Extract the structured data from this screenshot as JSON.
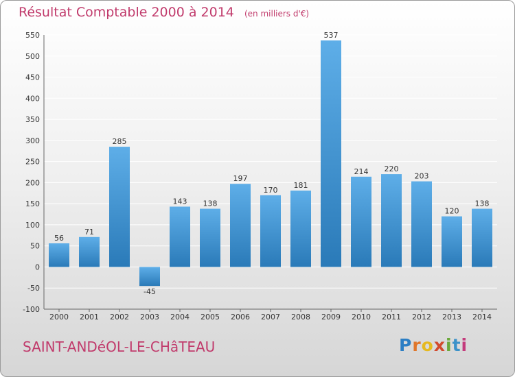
{
  "header": {
    "title": "Résultat Comptable 2000 à 2014",
    "unit": "(en milliers d'€)"
  },
  "footer": {
    "commune": "SAINT-ANDéOL-LE-CHâTEAU",
    "logo_letters": [
      "P",
      "r",
      "o",
      "x",
      "i",
      "t",
      "i"
    ]
  },
  "colors": {
    "title": "#c13b6c",
    "bar_light": "#5eaee8",
    "bar_dark": "#2a7ab8",
    "grid": "#ffffff"
  },
  "chart_data": {
    "type": "bar",
    "title": "Résultat Comptable 2000 à 2014",
    "subtitle": "(en milliers d'€)",
    "xlabel": "",
    "ylabel": "",
    "categories": [
      "2000",
      "2001",
      "2002",
      "2003",
      "2004",
      "2005",
      "2006",
      "2007",
      "2008",
      "2009",
      "2010",
      "2011",
      "2012",
      "2013",
      "2014"
    ],
    "values": [
      56,
      71,
      285,
      -45,
      143,
      138,
      197,
      170,
      181,
      537,
      214,
      220,
      203,
      120,
      138
    ],
    "ylim": [
      -100,
      550
    ],
    "yticks": [
      -100,
      -50,
      0,
      50,
      100,
      150,
      200,
      250,
      300,
      350,
      400,
      450,
      500,
      550
    ],
    "grid": true,
    "data_labels": true
  }
}
